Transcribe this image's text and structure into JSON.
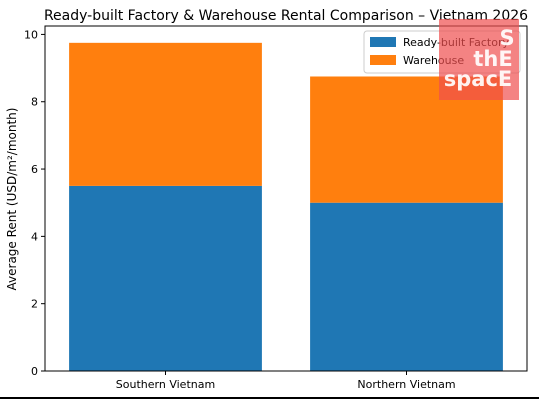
{
  "chart_data": {
    "type": "bar",
    "stacked": true,
    "title": "Ready-built Factory & Warehouse Rental Comparison – Vietnam 2026",
    "xlabel": "",
    "ylabel": "Average Rent (USD/m²/month)",
    "categories": [
      "Southern Vietnam",
      "Northern Vietnam"
    ],
    "series": [
      {
        "name": "Ready-built Factory",
        "values": [
          5.5,
          5.0
        ],
        "color": "#1f77b4"
      },
      {
        "name": "Warehouse",
        "values": [
          4.25,
          3.75
        ],
        "color": "#ff7f0e"
      }
    ],
    "ylim": [
      0,
      10.25
    ],
    "yticks": [
      "0",
      "2",
      "4",
      "6",
      "8",
      "10"
    ],
    "grid": false,
    "legend_position": "top-right"
  },
  "watermark": {
    "lines": [
      "S",
      "thE",
      "spacE"
    ],
    "color": "#f04e4e"
  }
}
